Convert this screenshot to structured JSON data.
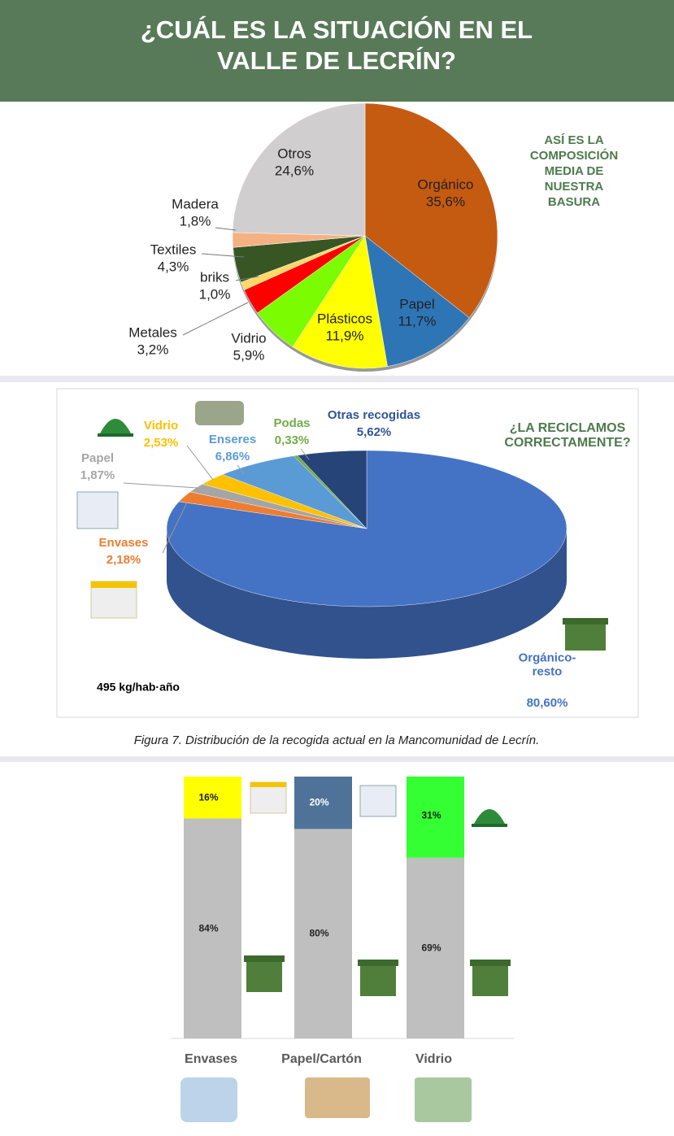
{
  "header": {
    "title": [
      "¿CUÁL ES LA SITUACIÓN EN EL",
      "VALLE DE LECRÍN?"
    ]
  },
  "chart_data": [
    {
      "type": "pie",
      "annotation": [
        "ASÍ ES LA",
        "COMPOSICIÓN",
        "MEDIA DE",
        "NUESTRA",
        "BASURA"
      ],
      "categories": [
        "Orgánico",
        "Papel",
        "Plásticos",
        "Vidrio",
        "Metales",
        "briks",
        "Textiles",
        "Madera",
        "Otros"
      ],
      "values": [
        35.6,
        11.7,
        11.9,
        5.9,
        3.2,
        1.0,
        4.3,
        1.8,
        24.6
      ],
      "value_labels": [
        "35,6%",
        "11,7%",
        "11,9%",
        "5,9%",
        "3,2%",
        "1,0%",
        "4,3%",
        "1,8%",
        "24,6%"
      ],
      "colors": [
        "#c55a11",
        "#2e75b6",
        "#ffff00",
        "#7cfc00",
        "#ff0000",
        "#ffd966",
        "#375623",
        "#f4b183",
        "#d0cece"
      ]
    },
    {
      "type": "pie3d",
      "annotation": [
        "¿LA RECICLAMOS",
        "CORRECTAMENTE?"
      ],
      "note": "495 kg/hab·año",
      "caption": "Figura 7. Distribución de la recogida actual en la Mancomunidad de Lecrín.",
      "categories": [
        "Orgánico-resto",
        "Envases",
        "Papel",
        "Vidrio",
        "Enseres",
        "Podas",
        "Otras recogidas"
      ],
      "values": [
        80.6,
        2.18,
        1.87,
        2.53,
        6.86,
        0.33,
        5.62
      ],
      "value_labels": [
        "80,60%",
        "2,18%",
        "1,87%",
        "2,53%",
        "6,86%",
        "0,33%",
        "5,62%"
      ],
      "colors": [
        "#4472c4",
        "#ed7d31",
        "#a5a5a5",
        "#ffc000",
        "#5b9bd5",
        "#70ad47",
        "#264478"
      ]
    },
    {
      "type": "stacked_bar",
      "categories": [
        "Envases",
        "Papel/Cartón",
        "Vidrio"
      ],
      "ylim": [
        0,
        100
      ],
      "series": [
        {
          "color": "#bfbfbf",
          "values": [
            84,
            80,
            69
          ],
          "value_labels": [
            "84%",
            "80%",
            "69%"
          ]
        },
        {
          "colors": [
            "#ffff00",
            "#4f7398",
            "#33ff33"
          ],
          "values": [
            16,
            20,
            31
          ],
          "value_labels": [
            "16%",
            "20%",
            "31%"
          ]
        }
      ]
    }
  ]
}
